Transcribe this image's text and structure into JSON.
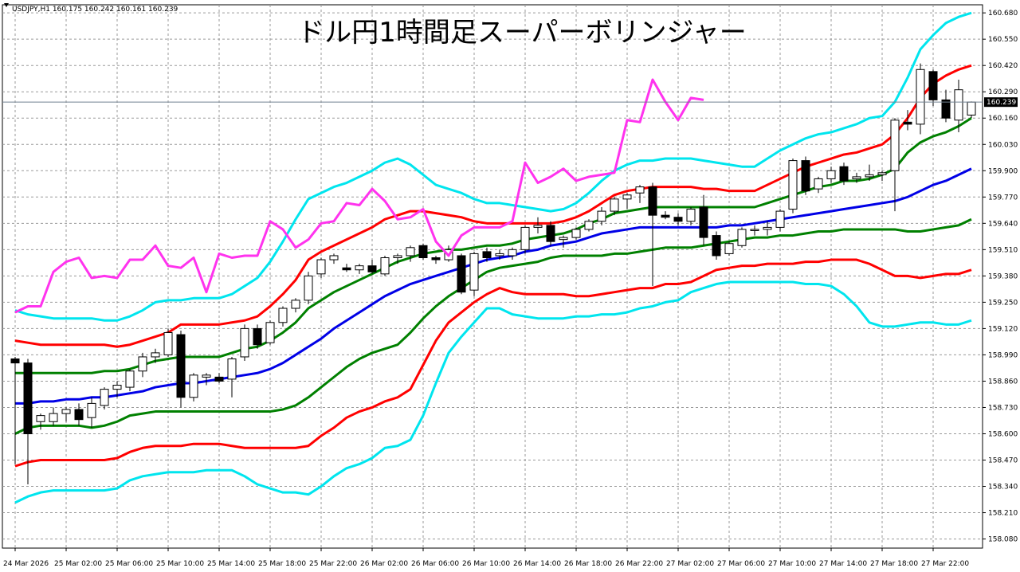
{
  "chart_data": {
    "type": "candlestick",
    "title": "ドル円1時間足スーパーボリンジャー",
    "symbol_info": "USDJPY,H1  160.175 160.242 160.161 160.239",
    "current_price_label": "160.239",
    "current_price": 160.239,
    "ylim": [
      158.035,
      160.72
    ],
    "grid": true,
    "y_ticks": [
      "160.680",
      "160.550",
      "160.420",
      "160.290",
      "160.160",
      "160.030",
      "159.900",
      "159.770",
      "159.640",
      "159.510",
      "159.380",
      "159.250",
      "159.120",
      "158.990",
      "158.860",
      "158.730",
      "158.600",
      "158.470",
      "158.340",
      "158.210",
      "158.080"
    ],
    "x_ticks": [
      {
        "label": "24 Mar 2026",
        "i": 0
      },
      {
        "label": "25 Mar 02:00",
        "i": 4
      },
      {
        "label": "25 Mar 06:00",
        "i": 8
      },
      {
        "label": "25 Mar 10:00",
        "i": 12
      },
      {
        "label": "25 Mar 14:00",
        "i": 16
      },
      {
        "label": "25 Mar 18:00",
        "i": 20
      },
      {
        "label": "25 Mar 22:00",
        "i": 24
      },
      {
        "label": "26 Mar 02:00",
        "i": 28
      },
      {
        "label": "26 Mar 06:00",
        "i": 32
      },
      {
        "label": "26 Mar 10:00",
        "i": 36
      },
      {
        "label": "26 Mar 14:00",
        "i": 40
      },
      {
        "label": "26 Mar 18:00",
        "i": 44
      },
      {
        "label": "26 Mar 22:00",
        "i": 48
      },
      {
        "label": "27 Mar 02:00",
        "i": 52
      },
      {
        "label": "27 Mar 06:00",
        "i": 56
      },
      {
        "label": "27 Mar 10:00",
        "i": 60
      },
      {
        "label": "27 Mar 14:00",
        "i": 64
      },
      {
        "label": "27 Mar 18:00",
        "i": 68
      },
      {
        "label": "27 Mar 22:00",
        "i": 72
      }
    ],
    "candles": [
      [
        158.97,
        158.98,
        158.45,
        158.95
      ],
      [
        158.95,
        158.97,
        158.35,
        158.6
      ],
      [
        158.66,
        158.7,
        158.62,
        158.69
      ],
      [
        158.66,
        158.73,
        158.64,
        158.7
      ],
      [
        158.7,
        158.73,
        158.66,
        158.72
      ],
      [
        158.72,
        158.75,
        158.64,
        158.67
      ],
      [
        158.68,
        158.78,
        158.63,
        158.75
      ],
      [
        158.74,
        158.83,
        158.72,
        158.82
      ],
      [
        158.82,
        158.86,
        158.78,
        158.84
      ],
      [
        158.83,
        158.92,
        158.81,
        158.91
      ],
      [
        158.91,
        159.0,
        158.88,
        158.98
      ],
      [
        158.98,
        159.02,
        158.95,
        159.0
      ],
      [
        158.99,
        159.12,
        158.98,
        159.1
      ],
      [
        159.09,
        159.11,
        158.73,
        158.78
      ],
      [
        158.78,
        158.9,
        158.76,
        158.89
      ],
      [
        158.88,
        158.9,
        158.84,
        158.89
      ],
      [
        158.88,
        158.9,
        158.85,
        158.86
      ],
      [
        158.87,
        158.98,
        158.78,
        158.97
      ],
      [
        158.98,
        159.14,
        158.96,
        159.12
      ],
      [
        159.12,
        159.14,
        159.02,
        159.04
      ],
      [
        159.05,
        159.16,
        159.04,
        159.15
      ],
      [
        159.15,
        159.23,
        159.13,
        159.22
      ],
      [
        159.22,
        159.27,
        159.2,
        159.26
      ],
      [
        159.26,
        159.4,
        159.24,
        159.38
      ],
      [
        159.39,
        159.47,
        159.37,
        159.46
      ],
      [
        159.46,
        159.49,
        159.44,
        159.48
      ],
      [
        159.42,
        159.44,
        159.4,
        159.41
      ],
      [
        159.41,
        159.44,
        159.39,
        159.43
      ],
      [
        159.43,
        159.46,
        159.39,
        159.4
      ],
      [
        159.39,
        159.48,
        159.38,
        159.47
      ],
      [
        159.47,
        159.49,
        159.44,
        159.48
      ],
      [
        159.48,
        159.53,
        159.45,
        159.52
      ],
      [
        159.53,
        159.54,
        159.46,
        159.47
      ],
      [
        159.47,
        159.48,
        159.44,
        159.46
      ],
      [
        159.46,
        159.53,
        159.45,
        159.51
      ],
      [
        159.48,
        159.49,
        159.29,
        159.3
      ],
      [
        159.31,
        159.5,
        159.28,
        159.49
      ],
      [
        159.5,
        159.52,
        159.45,
        159.47
      ],
      [
        159.48,
        159.51,
        159.46,
        159.49
      ],
      [
        159.48,
        159.52,
        159.46,
        159.51
      ],
      [
        159.51,
        159.63,
        159.49,
        159.62
      ],
      [
        159.62,
        159.67,
        159.59,
        159.63
      ],
      [
        159.63,
        159.65,
        159.53,
        159.55
      ],
      [
        159.56,
        159.58,
        159.52,
        159.57
      ],
      [
        159.57,
        159.62,
        159.56,
        159.61
      ],
      [
        159.61,
        159.66,
        159.6,
        159.65
      ],
      [
        159.65,
        159.72,
        159.63,
        159.7
      ],
      [
        159.7,
        159.77,
        159.68,
        159.76
      ],
      [
        159.76,
        159.79,
        159.71,
        159.78
      ],
      [
        159.79,
        159.83,
        159.74,
        159.82
      ],
      [
        159.82,
        159.84,
        159.33,
        159.68
      ],
      [
        159.68,
        159.7,
        159.66,
        159.67
      ],
      [
        159.67,
        159.69,
        159.63,
        159.65
      ],
      [
        159.65,
        159.72,
        159.63,
        159.71
      ],
      [
        159.72,
        159.78,
        159.53,
        159.57
      ],
      [
        159.58,
        159.6,
        159.46,
        159.48
      ],
      [
        159.49,
        159.55,
        159.48,
        159.54
      ],
      [
        159.53,
        159.62,
        159.52,
        159.61
      ],
      [
        159.61,
        159.63,
        159.58,
        159.61
      ],
      [
        159.61,
        159.65,
        159.58,
        159.62
      ],
      [
        159.62,
        159.71,
        159.6,
        159.7
      ],
      [
        159.71,
        159.96,
        159.69,
        159.95
      ],
      [
        159.95,
        159.97,
        159.78,
        159.8
      ],
      [
        159.81,
        159.87,
        159.79,
        159.86
      ],
      [
        159.86,
        159.92,
        159.84,
        159.9
      ],
      [
        159.92,
        159.94,
        159.83,
        159.85
      ],
      [
        159.86,
        159.89,
        159.84,
        159.87
      ],
      [
        159.87,
        159.93,
        159.85,
        159.88
      ],
      [
        159.88,
        159.9,
        159.85,
        159.89
      ],
      [
        159.9,
        160.16,
        159.7,
        160.15
      ],
      [
        160.14,
        160.2,
        160.1,
        160.13
      ],
      [
        160.13,
        160.43,
        160.08,
        160.4
      ],
      [
        160.39,
        160.4,
        160.22,
        160.25
      ],
      [
        160.25,
        160.3,
        160.14,
        160.16
      ],
      [
        160.15,
        160.35,
        160.09,
        160.3
      ],
      [
        160.175,
        160.242,
        160.161,
        160.239
      ]
    ],
    "series": [
      {
        "color": "#00e5ee",
        "values": [
          159.21,
          159.19,
          159.18,
          159.17,
          159.17,
          159.17,
          159.17,
          159.16,
          159.16,
          159.18,
          159.21,
          159.25,
          159.26,
          159.26,
          159.27,
          159.27,
          159.27,
          159.29,
          159.33,
          159.37,
          159.45,
          159.55,
          159.66,
          159.76,
          159.79,
          159.82,
          159.84,
          159.87,
          159.9,
          159.94,
          159.96,
          159.93,
          159.88,
          159.83,
          159.81,
          159.79,
          159.76,
          159.74,
          159.74,
          159.73,
          159.72,
          159.71,
          159.7,
          159.71,
          159.74,
          159.79,
          159.85,
          159.9,
          159.93,
          159.95,
          159.95,
          159.96,
          159.96,
          159.96,
          159.95,
          159.94,
          159.93,
          159.92,
          159.92,
          159.96,
          160.0,
          160.03,
          160.06,
          160.08,
          160.09,
          160.11,
          160.13,
          160.16,
          160.17,
          160.24,
          160.36,
          160.5,
          160.57,
          160.63,
          160.66,
          160.68
        ]
      },
      {
        "color": "#ff0000",
        "values": [
          159.06,
          159.05,
          159.04,
          159.04,
          159.04,
          159.04,
          159.04,
          159.04,
          159.03,
          159.04,
          159.06,
          159.08,
          159.1,
          159.14,
          159.14,
          159.14,
          159.14,
          159.15,
          159.16,
          159.18,
          159.23,
          159.29,
          159.36,
          159.46,
          159.5,
          159.53,
          159.56,
          159.59,
          159.62,
          159.66,
          159.68,
          159.7,
          159.7,
          159.69,
          159.68,
          159.67,
          159.65,
          159.64,
          159.64,
          159.64,
          159.64,
          159.64,
          159.64,
          159.65,
          159.67,
          159.7,
          159.74,
          159.78,
          159.8,
          159.81,
          159.82,
          159.82,
          159.82,
          159.82,
          159.81,
          159.81,
          159.8,
          159.8,
          159.8,
          159.83,
          159.86,
          159.89,
          159.92,
          159.94,
          159.96,
          159.98,
          159.99,
          160.01,
          160.03,
          160.08,
          160.16,
          160.26,
          160.33,
          160.37,
          160.4,
          160.42
        ]
      },
      {
        "color": "#008000",
        "values": [
          158.9,
          158.9,
          158.9,
          158.9,
          158.9,
          158.9,
          158.9,
          158.91,
          158.91,
          158.92,
          158.94,
          158.96,
          158.97,
          158.98,
          158.98,
          158.98,
          158.98,
          159.0,
          159.02,
          159.03,
          159.06,
          159.1,
          159.15,
          159.22,
          159.26,
          159.3,
          159.33,
          159.36,
          159.39,
          159.42,
          159.45,
          159.47,
          159.49,
          159.5,
          159.51,
          159.51,
          159.52,
          159.53,
          159.53,
          159.54,
          159.56,
          159.57,
          159.58,
          159.59,
          159.61,
          159.64,
          159.66,
          159.69,
          159.7,
          159.71,
          159.72,
          159.72,
          159.72,
          159.72,
          159.72,
          159.72,
          159.72,
          159.72,
          159.72,
          159.74,
          159.76,
          159.78,
          159.8,
          159.82,
          159.83,
          159.85,
          159.85,
          159.86,
          159.88,
          159.91,
          159.99,
          160.04,
          160.07,
          160.09,
          160.12,
          160.16
        ]
      },
      {
        "color": "#0000e6",
        "values": [
          158.75,
          158.75,
          158.76,
          158.76,
          158.77,
          158.77,
          158.78,
          158.78,
          158.79,
          158.8,
          158.81,
          158.83,
          158.84,
          158.85,
          158.85,
          158.86,
          158.87,
          158.88,
          158.89,
          158.9,
          158.92,
          158.95,
          158.99,
          159.03,
          159.07,
          159.12,
          159.16,
          159.2,
          159.24,
          159.28,
          159.31,
          159.34,
          159.36,
          159.38,
          159.4,
          159.42,
          159.44,
          159.46,
          159.47,
          159.48,
          159.5,
          159.51,
          159.53,
          159.54,
          159.55,
          159.57,
          159.59,
          159.6,
          159.61,
          159.62,
          159.62,
          159.62,
          159.62,
          159.62,
          159.62,
          159.62,
          159.63,
          159.63,
          159.64,
          159.65,
          159.66,
          159.67,
          159.68,
          159.69,
          159.7,
          159.71,
          159.72,
          159.73,
          159.74,
          159.75,
          159.77,
          159.8,
          159.83,
          159.85,
          159.88,
          159.91
        ]
      },
      {
        "color": "#008000",
        "values": [
          158.6,
          158.63,
          158.64,
          158.64,
          158.64,
          158.64,
          158.63,
          158.64,
          158.66,
          158.69,
          158.7,
          158.71,
          158.71,
          158.71,
          158.71,
          158.71,
          158.71,
          158.71,
          158.71,
          158.71,
          158.71,
          158.72,
          158.74,
          158.78,
          158.83,
          158.88,
          158.93,
          158.97,
          159.0,
          159.02,
          159.04,
          159.1,
          159.17,
          159.23,
          159.28,
          159.32,
          159.36,
          159.4,
          159.42,
          159.43,
          159.44,
          159.45,
          159.47,
          159.48,
          159.48,
          159.48,
          159.48,
          159.49,
          159.49,
          159.5,
          159.51,
          159.52,
          159.52,
          159.52,
          159.53,
          159.54,
          159.55,
          159.56,
          159.57,
          159.57,
          159.58,
          159.58,
          159.59,
          159.6,
          159.6,
          159.61,
          159.61,
          159.61,
          159.61,
          159.61,
          159.6,
          159.6,
          159.61,
          159.62,
          159.63,
          159.66
        ]
      },
      {
        "color": "#ff0000",
        "values": [
          158.44,
          158.46,
          158.47,
          158.47,
          158.47,
          158.47,
          158.47,
          158.47,
          158.48,
          158.51,
          158.53,
          158.54,
          158.54,
          158.54,
          158.55,
          158.55,
          158.55,
          158.54,
          158.53,
          158.53,
          158.53,
          158.53,
          158.53,
          158.54,
          158.59,
          158.63,
          158.68,
          158.71,
          158.73,
          158.76,
          158.78,
          158.82,
          158.94,
          159.06,
          159.15,
          159.2,
          159.25,
          159.29,
          159.32,
          159.3,
          159.29,
          159.29,
          159.29,
          159.29,
          159.28,
          159.28,
          159.29,
          159.3,
          159.31,
          159.32,
          159.32,
          159.34,
          159.34,
          159.35,
          159.38,
          159.41,
          159.42,
          159.43,
          159.43,
          159.44,
          159.44,
          159.44,
          159.45,
          159.45,
          159.46,
          159.46,
          159.46,
          159.44,
          159.41,
          159.38,
          159.38,
          159.37,
          159.38,
          159.39,
          159.39,
          159.41
        ]
      },
      {
        "color": "#00e5ee",
        "values": [
          158.26,
          158.29,
          158.31,
          158.32,
          158.32,
          158.32,
          158.32,
          158.32,
          158.33,
          158.37,
          158.39,
          158.4,
          158.41,
          158.41,
          158.41,
          158.42,
          158.42,
          158.42,
          158.39,
          158.35,
          158.33,
          158.31,
          158.31,
          158.3,
          158.34,
          158.39,
          158.43,
          158.45,
          158.48,
          158.53,
          158.54,
          158.57,
          158.69,
          158.85,
          159.0,
          159.08,
          159.15,
          159.22,
          159.22,
          159.19,
          159.18,
          159.17,
          159.17,
          159.17,
          159.18,
          159.18,
          159.19,
          159.19,
          159.2,
          159.22,
          159.23,
          159.25,
          159.26,
          159.3,
          159.32,
          159.34,
          159.35,
          159.35,
          159.35,
          159.35,
          159.35,
          159.35,
          159.34,
          159.34,
          159.33,
          159.29,
          159.23,
          159.15,
          159.13,
          159.13,
          159.14,
          159.15,
          159.15,
          159.14,
          159.14,
          159.16
        ]
      },
      {
        "color": "#ff33ee",
        "values": [
          159.2,
          159.23,
          159.23,
          159.4,
          159.45,
          159.47,
          159.37,
          159.38,
          159.37,
          159.46,
          159.46,
          159.53,
          159.43,
          159.42,
          159.47,
          159.3,
          159.49,
          159.47,
          159.48,
          159.48,
          159.65,
          159.61,
          159.52,
          159.56,
          159.64,
          159.65,
          159.74,
          159.73,
          159.81,
          159.75,
          159.66,
          159.67,
          159.71,
          159.55,
          159.48,
          159.58,
          159.62,
          159.62,
          159.62,
          159.65,
          159.94,
          159.84,
          159.87,
          159.91,
          159.85,
          159.87,
          159.88,
          159.89,
          160.15,
          160.14,
          160.35,
          160.24,
          160.15,
          160.26,
          160.25
        ]
      }
    ]
  }
}
